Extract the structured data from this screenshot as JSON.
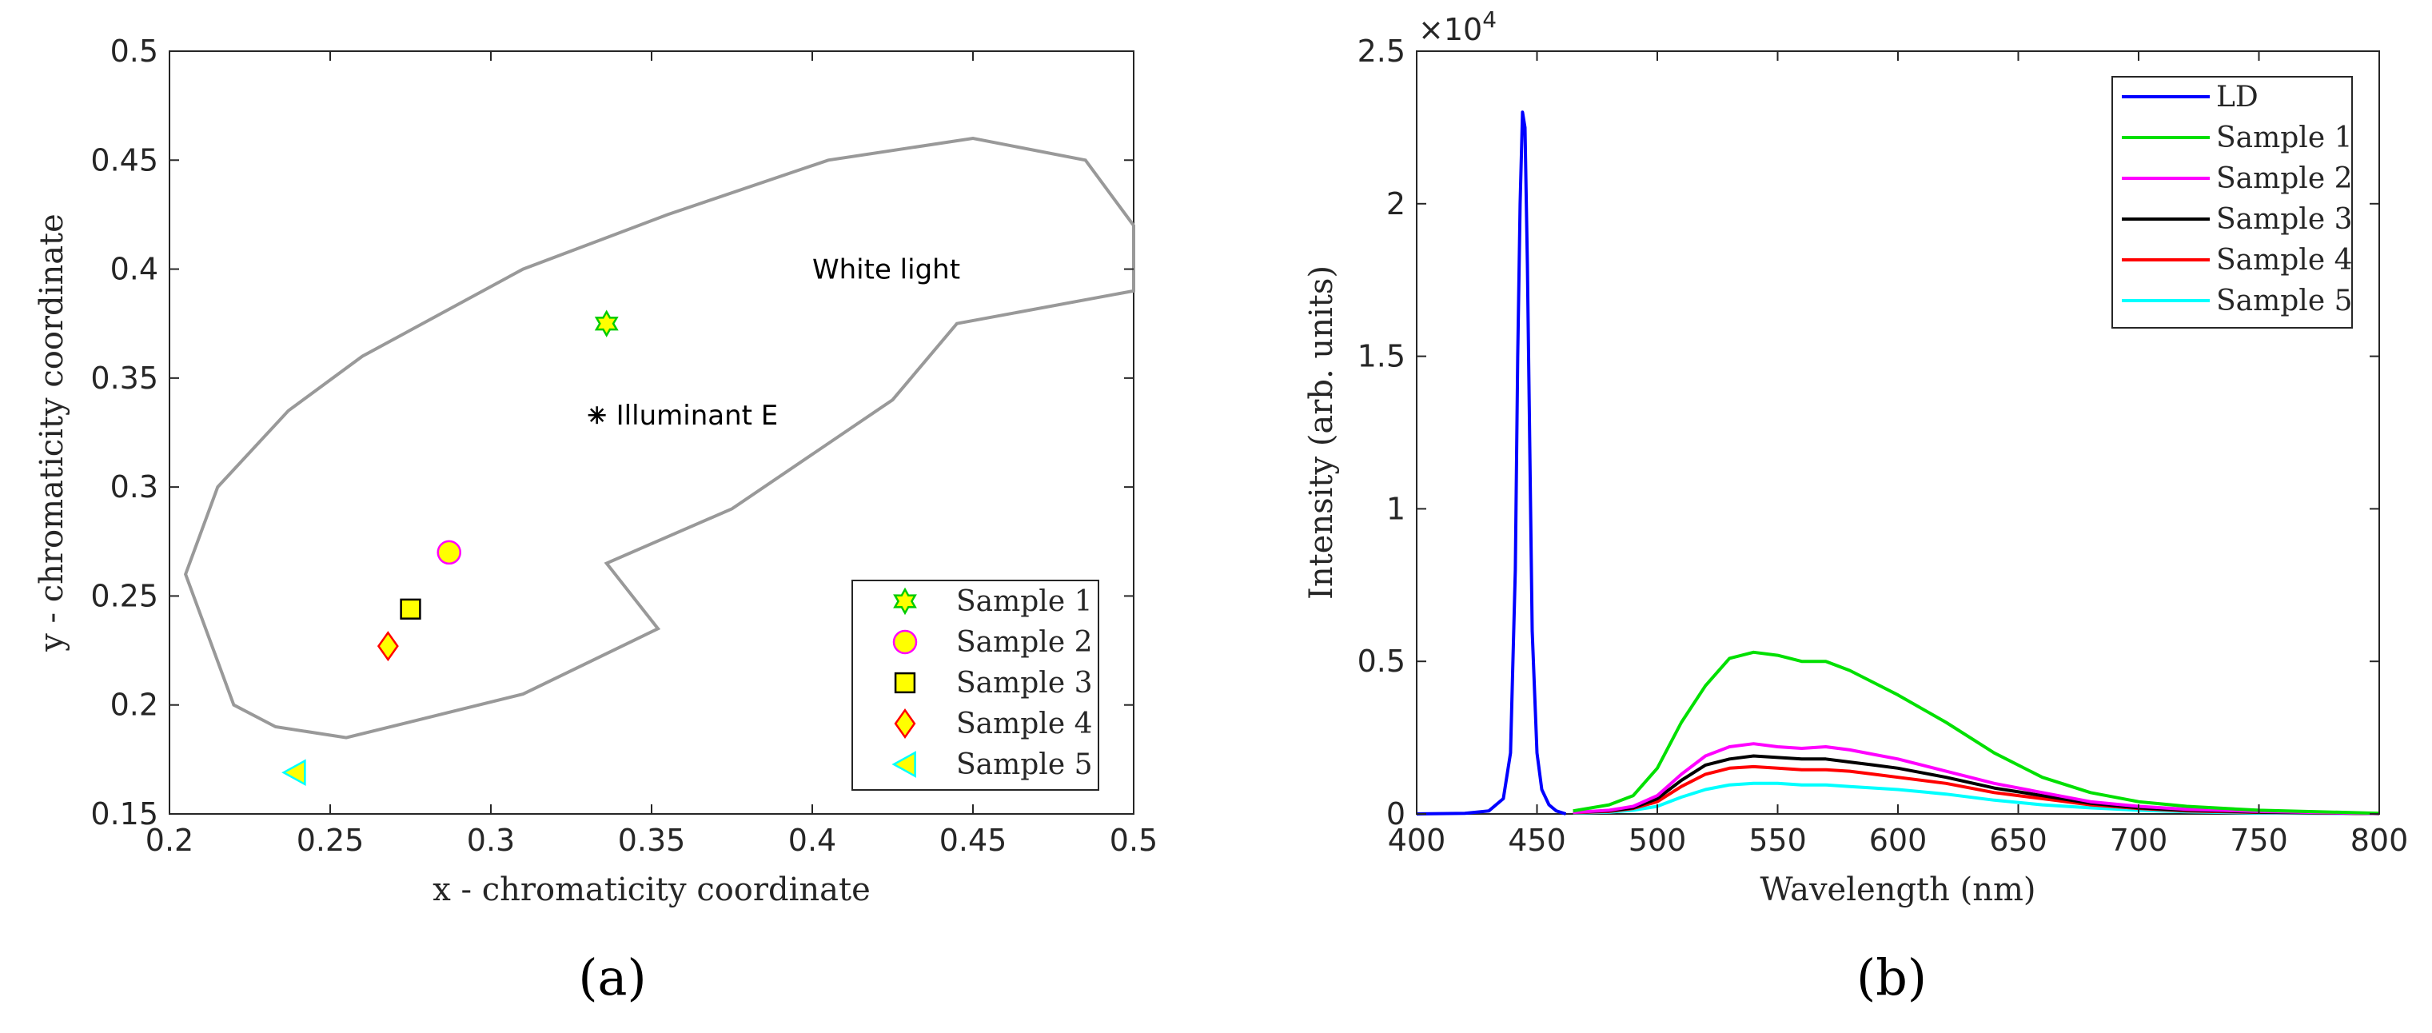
{
  "panel_labels": {
    "a": "(a)",
    "b": "(b)"
  },
  "chart_data": [
    {
      "type": "scatter",
      "panel": "(a)",
      "xlabel": "x - chromaticity coordinate",
      "ylabel": "y - chromaticity coordinate",
      "xlim": [
        0.2,
        0.5
      ],
      "ylim": [
        0.15,
        0.5
      ],
      "xticks": [
        0.2,
        0.25,
        0.3,
        0.35,
        0.4,
        0.45,
        0.5
      ],
      "yticks": [
        0.15,
        0.2,
        0.25,
        0.3,
        0.35,
        0.4,
        0.45,
        0.5
      ],
      "xtick_labels": [
        "0.2",
        "0.25",
        "0.3",
        "0.35",
        "0.4",
        "0.45",
        "0.5"
      ],
      "ytick_labels": [
        "0.15",
        "0.2",
        "0.25",
        "0.3",
        "0.35",
        "0.4",
        "0.45",
        "0.5"
      ],
      "white_region": {
        "label": "White light",
        "color": "#999999",
        "boundary": [
          [
            0.5,
            0.42
          ],
          [
            0.485,
            0.45
          ],
          [
            0.45,
            0.46
          ],
          [
            0.405,
            0.45
          ],
          [
            0.395,
            0.445
          ],
          [
            0.355,
            0.425
          ],
          [
            0.31,
            0.4
          ],
          [
            0.26,
            0.36
          ],
          [
            0.237,
            0.335
          ],
          [
            0.215,
            0.3
          ],
          [
            0.205,
            0.26
          ],
          [
            0.22,
            0.2
          ],
          [
            0.233,
            0.19
          ],
          [
            0.255,
            0.185
          ],
          [
            0.31,
            0.205
          ],
          [
            0.352,
            0.235
          ],
          [
            0.336,
            0.265
          ],
          [
            0.375,
            0.29
          ],
          [
            0.425,
            0.34
          ],
          [
            0.445,
            0.375
          ],
          [
            0.5,
            0.39
          ]
        ]
      },
      "reference_point": {
        "label": "Illuminant E",
        "x": 0.333,
        "y": 0.333,
        "color": "#000000"
      },
      "legend_position": "bottom-right",
      "series": [
        {
          "name": "Sample 1",
          "x": 0.336,
          "y": 0.375,
          "marker": "hexagram",
          "color": "#ffff00",
          "edge": "#00cc00"
        },
        {
          "name": "Sample 2",
          "x": 0.287,
          "y": 0.27,
          "marker": "circle",
          "color": "#ffff00",
          "edge": "#ff00ff"
        },
        {
          "name": "Sample 3",
          "x": 0.275,
          "y": 0.244,
          "marker": "square",
          "color": "#ffff00",
          "edge": "#000000"
        },
        {
          "name": "Sample 4",
          "x": 0.268,
          "y": 0.227,
          "marker": "diamond",
          "color": "#ffff00",
          "edge": "#ff0000"
        },
        {
          "name": "Sample 5",
          "x": 0.239,
          "y": 0.169,
          "marker": "triangle-left",
          "color": "#ffff00",
          "edge": "#00ffff"
        }
      ]
    },
    {
      "type": "line",
      "panel": "(b)",
      "xlabel": "Wavelength (nm)",
      "ylabel": "Intensity (arb. units)",
      "xlim": [
        400,
        800
      ],
      "ylim": [
        0,
        2.5
      ],
      "y_multiplier": "×10",
      "y_multiplier_exponent": "4",
      "xticks": [
        400,
        450,
        500,
        550,
        600,
        650,
        700,
        750,
        800
      ],
      "yticks": [
        0,
        0.5,
        1,
        1.5,
        2,
        2.5
      ],
      "xtick_labels": [
        "400",
        "450",
        "500",
        "550",
        "600",
        "650",
        "700",
        "750",
        "800"
      ],
      "ytick_labels": [
        "0",
        "0.5",
        "1",
        "1.5",
        "2",
        "2.5"
      ],
      "legend_position": "top-right",
      "series": [
        {
          "name": "LD",
          "color": "#0000ff",
          "x": [
            400,
            420,
            430,
            436,
            439,
            441,
            442,
            443,
            444,
            445,
            446,
            447,
            448,
            450,
            452,
            455,
            458,
            462
          ],
          "y": [
            0,
            0.002,
            0.01,
            0.05,
            0.2,
            0.8,
            1.5,
            2.0,
            2.3,
            2.25,
            1.8,
            1.2,
            0.6,
            0.2,
            0.08,
            0.03,
            0.01,
            0
          ]
        },
        {
          "name": "Sample 1",
          "color": "#00e000",
          "x": [
            465,
            480,
            490,
            500,
            510,
            520,
            530,
            540,
            550,
            560,
            570,
            580,
            590,
            600,
            620,
            640,
            660,
            680,
            700,
            720,
            750,
            800
          ],
          "y": [
            0.01,
            0.03,
            0.06,
            0.15,
            0.3,
            0.42,
            0.51,
            0.53,
            0.52,
            0.5,
            0.5,
            0.47,
            0.43,
            0.39,
            0.3,
            0.2,
            0.12,
            0.07,
            0.04,
            0.025,
            0.012,
            0.002
          ]
        },
        {
          "name": "Sample 2",
          "color": "#ff00ff",
          "x": [
            465,
            480,
            490,
            500,
            510,
            520,
            530,
            540,
            550,
            560,
            570,
            580,
            590,
            600,
            620,
            640,
            660,
            680,
            700,
            720,
            750,
            800
          ],
          "y": [
            0.005,
            0.012,
            0.025,
            0.06,
            0.13,
            0.19,
            0.22,
            0.23,
            0.22,
            0.215,
            0.22,
            0.21,
            0.195,
            0.18,
            0.14,
            0.1,
            0.07,
            0.04,
            0.025,
            0.015,
            0.008,
            0.001
          ]
        },
        {
          "name": "Sample 3",
          "color": "#000000",
          "x": [
            465,
            480,
            490,
            500,
            510,
            520,
            530,
            540,
            550,
            560,
            570,
            580,
            590,
            600,
            620,
            640,
            660,
            680,
            700,
            720,
            750,
            800
          ],
          "y": [
            0.005,
            0.01,
            0.02,
            0.05,
            0.11,
            0.16,
            0.18,
            0.19,
            0.185,
            0.18,
            0.18,
            0.17,
            0.16,
            0.15,
            0.12,
            0.085,
            0.06,
            0.035,
            0.02,
            0.012,
            0.006,
            0.001
          ]
        },
        {
          "name": "Sample 4",
          "color": "#ff0000",
          "x": [
            465,
            480,
            490,
            500,
            510,
            520,
            530,
            540,
            550,
            560,
            570,
            580,
            590,
            600,
            620,
            640,
            660,
            680,
            700,
            720,
            750,
            800
          ],
          "y": [
            0.004,
            0.008,
            0.018,
            0.04,
            0.09,
            0.13,
            0.15,
            0.155,
            0.15,
            0.145,
            0.145,
            0.14,
            0.13,
            0.12,
            0.1,
            0.07,
            0.05,
            0.03,
            0.018,
            0.01,
            0.005,
            0.001
          ]
        },
        {
          "name": "Sample 5",
          "color": "#00ffff",
          "x": [
            465,
            480,
            490,
            500,
            510,
            520,
            530,
            540,
            550,
            560,
            570,
            580,
            590,
            600,
            620,
            640,
            660,
            680,
            700,
            720,
            750,
            800
          ],
          "y": [
            0.003,
            0.006,
            0.012,
            0.025,
            0.055,
            0.08,
            0.095,
            0.1,
            0.1,
            0.095,
            0.095,
            0.09,
            0.085,
            0.08,
            0.065,
            0.045,
            0.03,
            0.02,
            0.012,
            0.007,
            0.003,
            0.001
          ]
        }
      ]
    }
  ]
}
